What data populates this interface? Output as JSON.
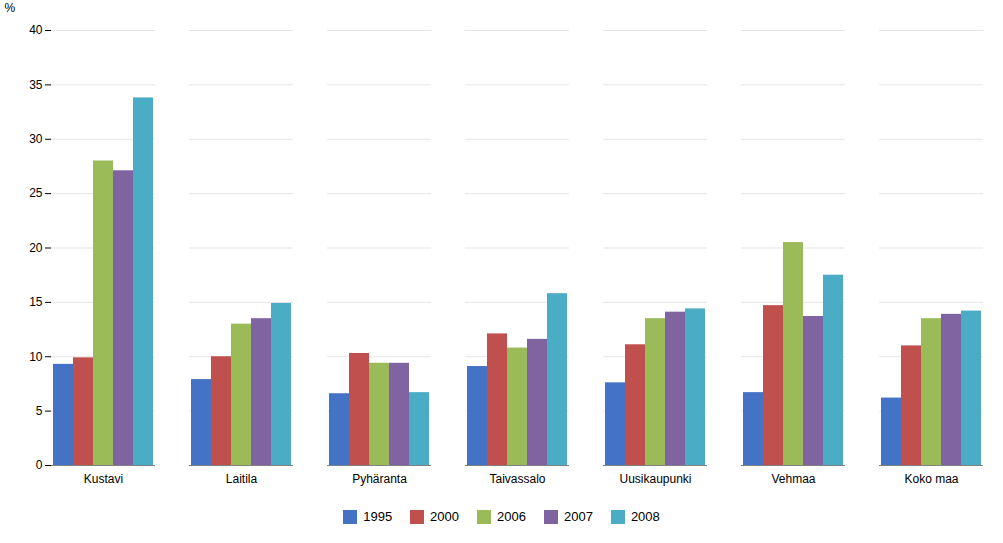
{
  "chart_data": {
    "type": "bar",
    "categories": [
      "Kustavi",
      "Laitila",
      "Pyhäranta",
      "Taivassalo",
      "Uusikaupunki",
      "Vehmaa",
      "Koko maa"
    ],
    "series": [
      {
        "name": "1995",
        "color": "#4472C4",
        "values": [
          9.3,
          7.9,
          6.6,
          9.1,
          7.6,
          6.7,
          6.2
        ]
      },
      {
        "name": "2000",
        "color": "#C0504D",
        "values": [
          9.9,
          10.0,
          10.3,
          12.1,
          11.1,
          14.7,
          11.0
        ]
      },
      {
        "name": "2006",
        "color": "#9BBB59",
        "values": [
          28.0,
          13.0,
          9.4,
          10.8,
          13.5,
          20.5,
          13.5
        ]
      },
      {
        "name": "2007",
        "color": "#8064A2",
        "values": [
          27.1,
          13.5,
          9.4,
          11.6,
          14.1,
          13.7,
          13.9
        ]
      },
      {
        "name": "2008",
        "color": "#4BACC6",
        "values": [
          33.8,
          14.9,
          6.7,
          15.8,
          14.4,
          17.5,
          14.2
        ]
      }
    ],
    "ylabel": "%",
    "ylim": [
      0,
      40
    ],
    "yticks": [
      0,
      5,
      10,
      15,
      20,
      25,
      30,
      35,
      40
    ],
    "grid": true,
    "legend": "bottom"
  }
}
